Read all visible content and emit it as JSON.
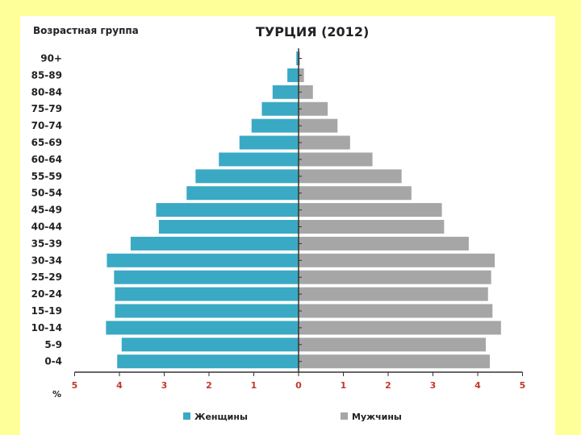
{
  "chart_data": {
    "type": "bar",
    "orientation": "horizontal-population-pyramid",
    "title": "ТУРЦИЯ (2012)",
    "ylabel": "Возрастная группа",
    "xlabel": "%",
    "categories": [
      "0-4",
      "5-9",
      "10-14",
      "15-19",
      "20-24",
      "25-29",
      "30-34",
      "35-39",
      "40-44",
      "45-49",
      "50-54",
      "55-59",
      "60-64",
      "65-69",
      "70-74",
      "75-79",
      "80-84",
      "85-89",
      "90+"
    ],
    "series": [
      {
        "name": "Женщины",
        "side": "left",
        "color": "#3aa9c4",
        "values": [
          4.05,
          3.95,
          4.3,
          4.1,
          4.1,
          4.12,
          4.28,
          3.75,
          3.12,
          3.18,
          2.5,
          2.3,
          1.78,
          1.32,
          1.05,
          0.82,
          0.58,
          0.25,
          0.05
        ]
      },
      {
        "name": "Мужчины",
        "side": "right",
        "color": "#a6a6a6",
        "values": [
          4.27,
          4.18,
          4.52,
          4.33,
          4.23,
          4.3,
          4.38,
          3.8,
          3.25,
          3.2,
          2.52,
          2.3,
          1.65,
          1.15,
          0.87,
          0.65,
          0.32,
          0.12,
          0.03
        ]
      }
    ],
    "xlim": [
      -5,
      5
    ],
    "xticks": [
      "5",
      "4",
      "3",
      "2",
      "1",
      "0",
      "1",
      "2",
      "3",
      "4",
      "5"
    ],
    "grid": false,
    "legend_position": "bottom"
  }
}
